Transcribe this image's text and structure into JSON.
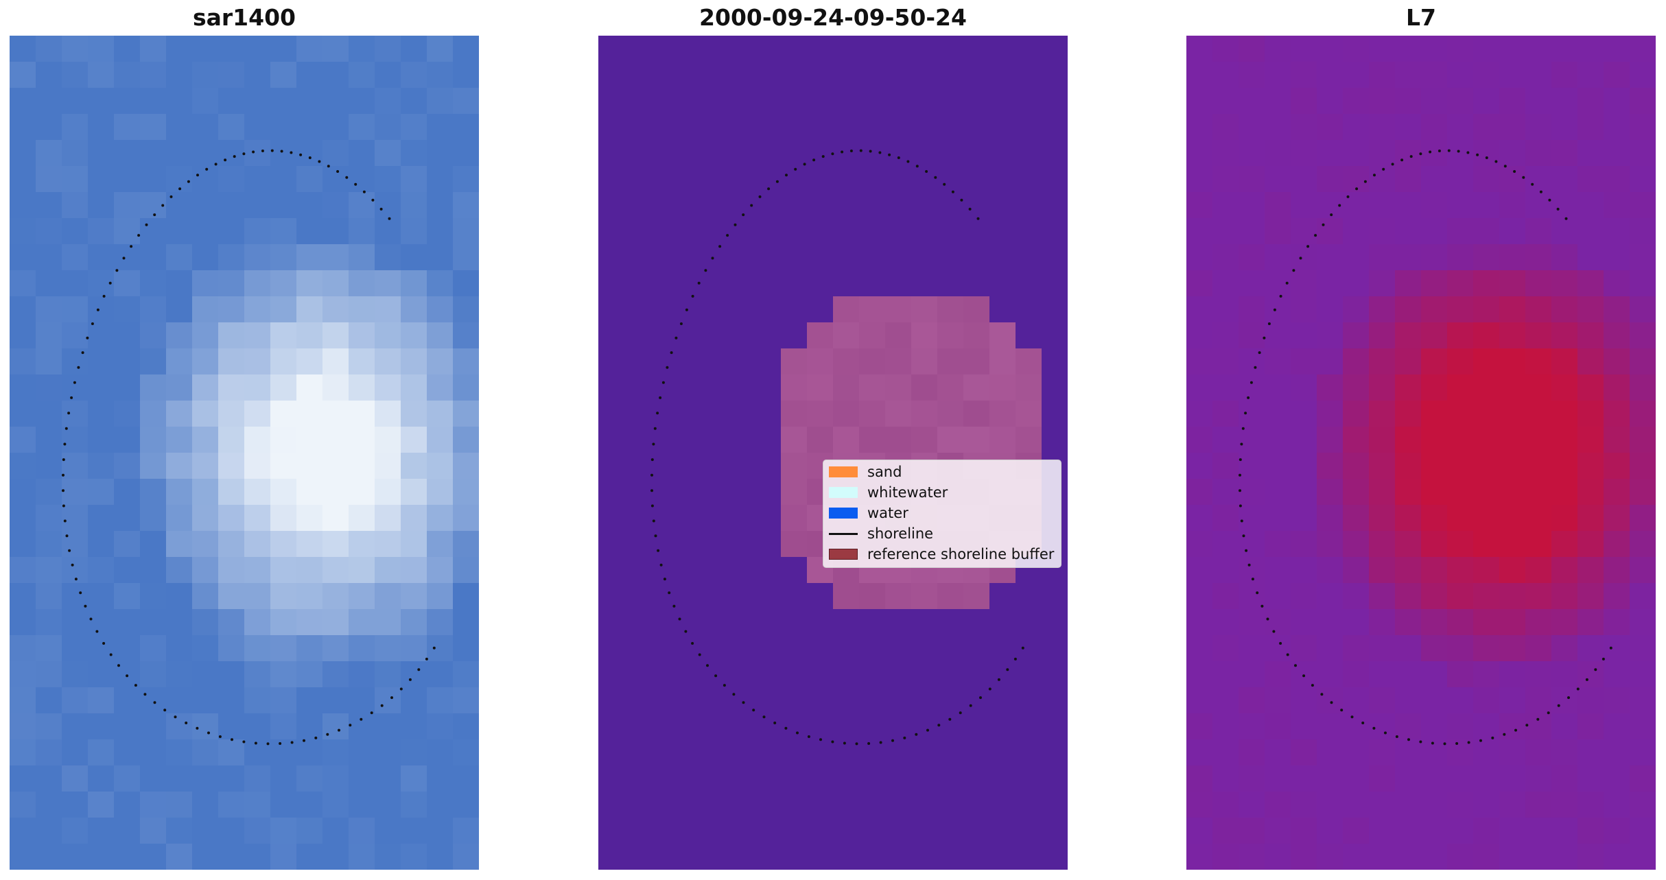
{
  "titles": {
    "left": "sar1400",
    "center": "2000-09-24-09-50-24",
    "right": "L7"
  },
  "legend": {
    "items": [
      {
        "label": "sand",
        "color": "#ff8c3a",
        "kind": "patch"
      },
      {
        "label": "whitewater",
        "color": "#d2fcfc",
        "kind": "patch"
      },
      {
        "label": "water",
        "color": "#0a5cf0",
        "kind": "patch"
      },
      {
        "label": "shoreline",
        "color": "#111111",
        "kind": "line"
      },
      {
        "label": "reference shoreline buffer",
        "color": "#9b3a42",
        "kind": "patch"
      }
    ]
  },
  "colors": {
    "rgb_water": "#4a78c6",
    "rgb_bright": "#eef4fa",
    "classified_background": "#54229a",
    "classified_sand": "#9e4c8e",
    "index_low": "#7a24a4",
    "index_high": "#c5123e",
    "shoreline_points": "#111111"
  },
  "icons": {
    "shoreline": "dotted-shoreline"
  }
}
